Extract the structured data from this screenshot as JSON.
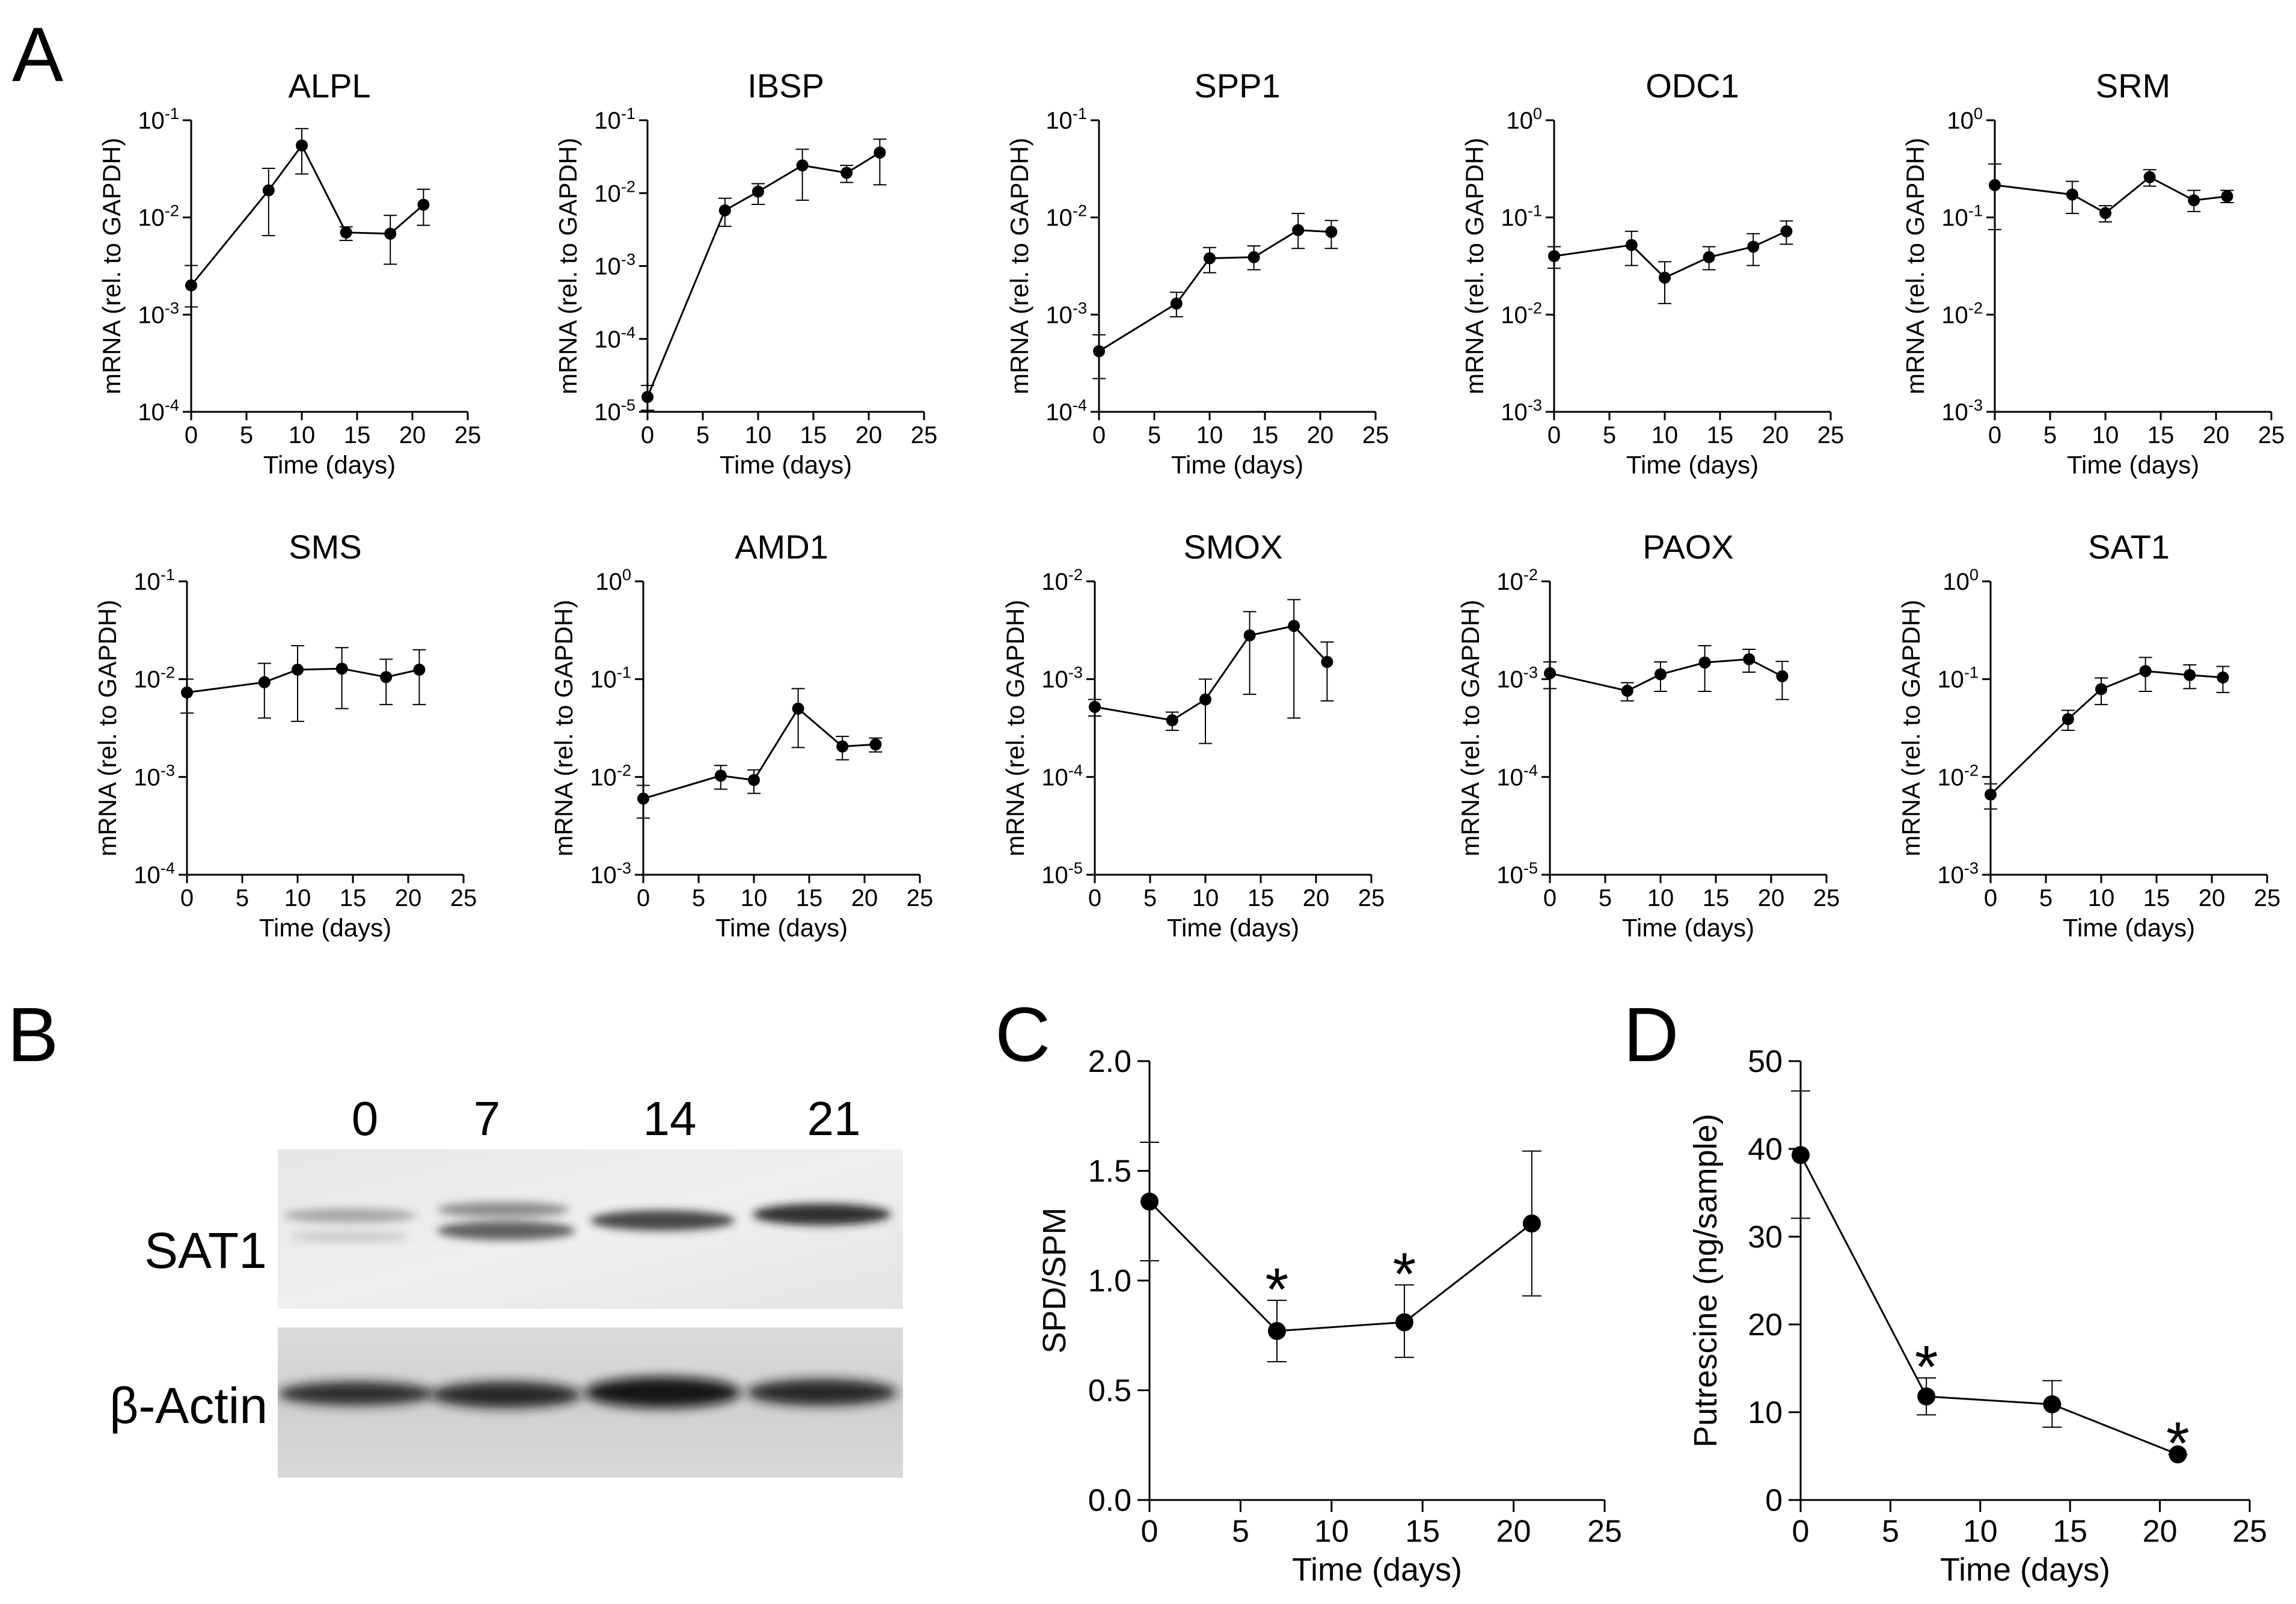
{
  "panel_letters": {
    "a": "A",
    "b": "B",
    "c": "C",
    "d": "D"
  },
  "western_blot": {
    "lanes": [
      "0",
      "7",
      "14",
      "21"
    ],
    "proteins": [
      "SAT1",
      "β-Actin"
    ]
  },
  "chart_data": [
    {
      "id": "ALPL",
      "type": "line",
      "title": "ALPL",
      "xlabel": "Time (days)",
      "ylabel": "mRNA (rel. to GAPDH)",
      "yscale": "log",
      "ylim_exp": [
        -4,
        -1
      ],
      "ytick_labels": [
        [
          "10",
          "-1"
        ],
        [
          "10",
          "-2"
        ],
        [
          "10",
          "-3"
        ],
        [
          "10",
          "-4"
        ]
      ],
      "xlim": [
        0,
        25
      ],
      "xticks": [
        "0",
        "5",
        "10",
        "15",
        "20",
        "25"
      ],
      "x": [
        0,
        7,
        10,
        14,
        18,
        21
      ],
      "y": [
        0.002,
        0.019,
        0.055,
        0.007,
        0.0068,
        0.0135
      ],
      "err_lo": [
        0.0012,
        0.0065,
        0.028,
        0.0058,
        0.0033,
        0.0083
      ],
      "err_hi": [
        0.0032,
        0.032,
        0.082,
        0.008,
        0.0105,
        0.0195
      ]
    },
    {
      "id": "IBSP",
      "type": "line",
      "title": "IBSP",
      "xlabel": "Time (days)",
      "ylabel": "mRNA (rel. to GAPDH)",
      "yscale": "log",
      "ylim_exp": [
        -5,
        -1
      ],
      "ytick_labels": [
        [
          "10",
          "-1"
        ],
        [
          "10",
          "-2"
        ],
        [
          "10",
          "-3"
        ],
        [
          "10",
          "-4"
        ],
        [
          "10",
          "-5"
        ]
      ],
      "xlim": [
        0,
        25
      ],
      "xticks": [
        "0",
        "5",
        "10",
        "15",
        "20",
        "25"
      ],
      "x": [
        0,
        7,
        10,
        14,
        18,
        21
      ],
      "y": [
        1.6e-05,
        0.0058,
        0.0105,
        0.024,
        0.019,
        0.036
      ],
      "err_lo": [
        1.05e-05,
        0.0035,
        0.007,
        0.008,
        0.014,
        0.013
      ],
      "err_hi": [
        2.3e-05,
        0.0085,
        0.0135,
        0.04,
        0.024,
        0.055
      ]
    },
    {
      "id": "SPP1",
      "type": "line",
      "title": "SPP1",
      "xlabel": "Time (days)",
      "ylabel": "mRNA (rel. to GAPDH)",
      "yscale": "log",
      "ylim_exp": [
        -4,
        -1
      ],
      "ytick_labels": [
        [
          "10",
          "-1"
        ],
        [
          "10",
          "-2"
        ],
        [
          "10",
          "-3"
        ],
        [
          "10",
          "-4"
        ]
      ],
      "xlim": [
        0,
        25
      ],
      "xticks": [
        "0",
        "5",
        "10",
        "15",
        "20",
        "25"
      ],
      "x": [
        0,
        7,
        10,
        14,
        18,
        21
      ],
      "y": [
        0.00042,
        0.0013,
        0.0038,
        0.0039,
        0.0074,
        0.0071
      ],
      "err_lo": [
        0.00022,
        0.00095,
        0.0027,
        0.0029,
        0.0048,
        0.0048
      ],
      "err_hi": [
        0.00062,
        0.0017,
        0.0049,
        0.0051,
        0.011,
        0.0093
      ]
    },
    {
      "id": "ODC1",
      "type": "line",
      "title": "ODC1",
      "xlabel": "Time (days)",
      "ylabel": "mRNA (rel. to GAPDH)",
      "yscale": "log",
      "ylim_exp": [
        -3,
        0
      ],
      "ytick_labels": [
        [
          "10",
          "0"
        ],
        [
          "10",
          "-1"
        ],
        [
          "10",
          "-2"
        ],
        [
          "10",
          "-3"
        ]
      ],
      "xlim": [
        0,
        25
      ],
      "xticks": [
        "0",
        "5",
        "10",
        "15",
        "20",
        "25"
      ],
      "x": [
        0,
        7,
        10,
        14,
        18,
        21
      ],
      "y": [
        0.04,
        0.052,
        0.024,
        0.039,
        0.05,
        0.072
      ],
      "err_lo": [
        0.03,
        0.032,
        0.013,
        0.029,
        0.032,
        0.053
      ],
      "err_hi": [
        0.05,
        0.072,
        0.035,
        0.05,
        0.068,
        0.092
      ]
    },
    {
      "id": "SRM",
      "type": "line",
      "title": "SRM",
      "xlabel": "Time (days)",
      "ylabel": "mRNA (rel. to GAPDH)",
      "yscale": "log",
      "ylim_exp": [
        -3,
        0
      ],
      "ytick_labels": [
        [
          "10",
          "0"
        ],
        [
          "10",
          "-1"
        ],
        [
          "10",
          "-2"
        ],
        [
          "10",
          "-3"
        ]
      ],
      "xlim": [
        0,
        25
      ],
      "xticks": [
        "0",
        "5",
        "10",
        "15",
        "20",
        "25"
      ],
      "x": [
        0,
        7,
        10,
        14,
        18,
        21
      ],
      "y": [
        0.215,
        0.172,
        0.111,
        0.26,
        0.15,
        0.165
      ],
      "err_lo": [
        0.075,
        0.11,
        0.09,
        0.21,
        0.115,
        0.142
      ],
      "err_hi": [
        0.355,
        0.235,
        0.132,
        0.31,
        0.19,
        0.19
      ]
    },
    {
      "id": "SMS",
      "type": "line",
      "title": "SMS",
      "xlabel": "Time (days)",
      "ylabel": "mRNA (rel. to GAPDH)",
      "yscale": "log",
      "ylim_exp": [
        -4,
        -1
      ],
      "ytick_labels": [
        [
          "10",
          "-1"
        ],
        [
          "10",
          "-2"
        ],
        [
          "10",
          "-3"
        ],
        [
          "10",
          "-4"
        ]
      ],
      "xlim": [
        0,
        25
      ],
      "xticks": [
        "0",
        "5",
        "10",
        "15",
        "20",
        "25"
      ],
      "x": [
        0,
        7,
        10,
        14,
        18,
        21
      ],
      "y": [
        0.0073,
        0.0093,
        0.0125,
        0.0128,
        0.0105,
        0.0125
      ],
      "err_lo": [
        0.0045,
        0.004,
        0.0037,
        0.005,
        0.0055,
        0.0055
      ],
      "err_hi": [
        0.01,
        0.0145,
        0.022,
        0.021,
        0.016,
        0.02
      ]
    },
    {
      "id": "AMD1",
      "type": "line",
      "title": "AMD1",
      "xlabel": "Time (days)",
      "ylabel": "mRNA (rel. to GAPDH)",
      "yscale": "log",
      "ylim_exp": [
        -3,
        0
      ],
      "ytick_labels": [
        [
          "10",
          "0"
        ],
        [
          "10",
          "-1"
        ],
        [
          "10",
          "-2"
        ],
        [
          "10",
          "-3"
        ]
      ],
      "xlim": [
        0,
        25
      ],
      "xticks": [
        "0",
        "5",
        "10",
        "15",
        "20",
        "25"
      ],
      "x": [
        0,
        7,
        10,
        14,
        18,
        21
      ],
      "y": [
        0.006,
        0.0103,
        0.0093,
        0.05,
        0.0205,
        0.0215
      ],
      "err_lo": [
        0.0038,
        0.0075,
        0.0068,
        0.02,
        0.015,
        0.018
      ],
      "err_hi": [
        0.0082,
        0.0131,
        0.0118,
        0.08,
        0.026,
        0.025
      ]
    },
    {
      "id": "SMOX",
      "type": "line",
      "title": "SMOX",
      "xlabel": "Time (days)",
      "ylabel": "mRNA (rel. to GAPDH)",
      "yscale": "log",
      "ylim_exp": [
        -5,
        -2
      ],
      "ytick_labels": [
        [
          "10",
          "-2"
        ],
        [
          "10",
          "-3"
        ],
        [
          "10",
          "-4"
        ],
        [
          "10",
          "-5"
        ]
      ],
      "xlim": [
        0,
        25
      ],
      "xticks": [
        "0",
        "5",
        "10",
        "15",
        "20",
        "25"
      ],
      "x": [
        0,
        7,
        10,
        14,
        18,
        21
      ],
      "y": [
        0.00052,
        0.00038,
        0.00062,
        0.0028,
        0.0035,
        0.0015
      ],
      "err_lo": [
        0.00042,
        0.0003,
        0.00022,
        0.0007,
        0.0004,
        0.0006
      ],
      "err_hi": [
        0.00062,
        0.00046,
        0.001,
        0.0049,
        0.0065,
        0.0024
      ]
    },
    {
      "id": "PAOX",
      "type": "line",
      "title": "PAOX",
      "xlabel": "Time (days)",
      "ylabel": "mRNA (rel. to GAPDH)",
      "yscale": "log",
      "ylim_exp": [
        -5,
        -2
      ],
      "ytick_labels": [
        [
          "10",
          "-2"
        ],
        [
          "10",
          "-3"
        ],
        [
          "10",
          "-4"
        ],
        [
          "10",
          "-5"
        ]
      ],
      "xlim": [
        0,
        25
      ],
      "xticks": [
        "0",
        "5",
        "10",
        "15",
        "20",
        "25"
      ],
      "x": [
        0,
        7,
        10,
        14,
        18,
        21
      ],
      "y": [
        0.00115,
        0.00076,
        0.00112,
        0.00148,
        0.0016,
        0.00107
      ],
      "err_lo": [
        0.0008,
        0.0006,
        0.00075,
        0.00075,
        0.00118,
        0.00062
      ],
      "err_hi": [
        0.0015,
        0.00092,
        0.0015,
        0.0022,
        0.00202,
        0.00152
      ]
    },
    {
      "id": "SAT1",
      "type": "line",
      "title": "SAT1",
      "xlabel": "Time (days)",
      "ylabel": "mRNA (rel. to GAPDH)",
      "yscale": "log",
      "ylim_exp": [
        -3,
        0
      ],
      "ytick_labels": [
        [
          "10",
          "0"
        ],
        [
          "10",
          "-1"
        ],
        [
          "10",
          "-2"
        ],
        [
          "10",
          "-3"
        ]
      ],
      "xlim": [
        0,
        25
      ],
      "xticks": [
        "0",
        "5",
        "10",
        "15",
        "20",
        "25"
      ],
      "x": [
        0,
        7,
        10,
        14,
        18,
        21
      ],
      "y": [
        0.0066,
        0.039,
        0.079,
        0.121,
        0.11,
        0.104
      ],
      "err_lo": [
        0.0047,
        0.03,
        0.055,
        0.075,
        0.08,
        0.073
      ],
      "err_hi": [
        0.0085,
        0.048,
        0.103,
        0.167,
        0.14,
        0.135
      ]
    },
    {
      "id": "SPD_SPM",
      "type": "line",
      "title": "",
      "xlabel": "Time (days)",
      "ylabel": "SPD/SPM",
      "yscale": "linear",
      "ylim": [
        0,
        2.0
      ],
      "yticks": [
        "0.0",
        "0.5",
        "1.0",
        "1.5",
        "2.0"
      ],
      "xlim": [
        0,
        25
      ],
      "xticks": [
        "0",
        "5",
        "10",
        "15",
        "20",
        "25"
      ],
      "x": [
        0,
        7,
        14,
        21
      ],
      "y": [
        1.36,
        0.77,
        0.81,
        1.26
      ],
      "err_lo": [
        1.09,
        0.63,
        0.65,
        0.93
      ],
      "err_hi": [
        1.63,
        0.91,
        0.98,
        1.59
      ],
      "significance": [
        null,
        "*",
        "*",
        null
      ]
    },
    {
      "id": "Putrescine",
      "type": "line",
      "title": "",
      "xlabel": "Time (days)",
      "ylabel": "Putrescine (ng/sample)",
      "yscale": "linear",
      "ylim": [
        0,
        50
      ],
      "yticks": [
        "0",
        "10",
        "20",
        "30",
        "40",
        "50"
      ],
      "xlim": [
        0,
        25
      ],
      "xticks": [
        "0",
        "5",
        "10",
        "15",
        "20",
        "25"
      ],
      "x": [
        0,
        7,
        14,
        21
      ],
      "y": [
        39.3,
        11.8,
        10.9,
        5.2
      ],
      "err_lo": [
        32.1,
        9.7,
        8.3,
        5.2
      ],
      "err_hi": [
        46.6,
        13.9,
        13.6,
        5.2
      ],
      "significance": [
        null,
        "*",
        null,
        "*"
      ]
    }
  ]
}
